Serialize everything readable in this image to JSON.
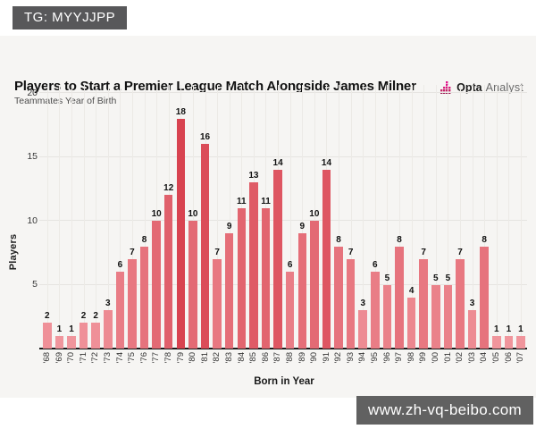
{
  "overlays": {
    "tag": "TG: MYYJJPP",
    "watermark": "www.zh-vq-beibo.com"
  },
  "header": {
    "title": "Players to Start a Premier League Match Alongside James Milner",
    "subtitle": "Teammates Year of Birth",
    "brand_name": "Opta",
    "brand_suffix": "Analyst"
  },
  "chart_data": {
    "type": "bar",
    "title": "Players to Start a Premier League Match Alongside James Milner",
    "subtitle": "Teammates Year of Birth",
    "categories": [
      "'68",
      "'69",
      "'70",
      "'71",
      "'72",
      "'73",
      "'74",
      "'75",
      "'76",
      "'77",
      "'78",
      "'79",
      "'80",
      "'81",
      "'82",
      "'83",
      "'84",
      "'85",
      "'86",
      "'87",
      "'88",
      "'89",
      "'90",
      "'91",
      "'92",
      "'93",
      "'94",
      "'95",
      "'96",
      "'97",
      "'98",
      "'99",
      "'00",
      "'01",
      "'02",
      "'03",
      "'04",
      "'05",
      "'06",
      "'07"
    ],
    "values": [
      2,
      1,
      1,
      2,
      2,
      3,
      6,
      7,
      8,
      10,
      12,
      18,
      10,
      16,
      7,
      9,
      11,
      13,
      11,
      14,
      6,
      9,
      10,
      14,
      8,
      7,
      3,
      6,
      5,
      8,
      4,
      7,
      5,
      5,
      7,
      3,
      8,
      1,
      1,
      1
    ],
    "xlabel": "Born in Year",
    "ylabel": "Players",
    "ylim": [
      0,
      20
    ],
    "yticks": [
      5,
      10,
      15,
      20
    ],
    "grid": true,
    "legend": false,
    "data_labels": true
  },
  "colors": {
    "bar_low": "#f0959c",
    "bar_high": "#d84350",
    "card_bg": "#f6f5f3",
    "grid": "#e6e4e1",
    "axis": "#1b1b1b",
    "badge_bg": "#58585a",
    "watermark_bg": "#616161",
    "brand_pink": "#e0168c",
    "brand_dark_pink": "#9c1b54"
  }
}
